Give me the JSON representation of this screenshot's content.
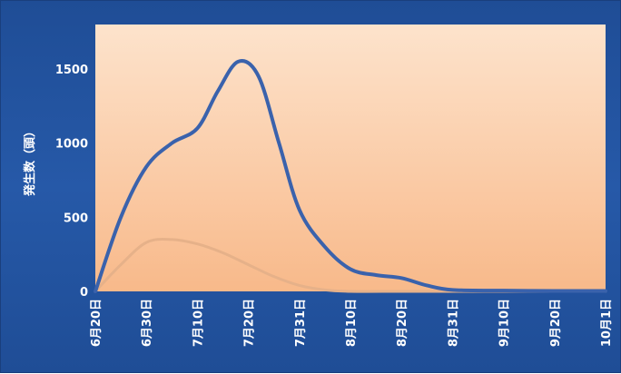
{
  "chart_data": {
    "type": "line",
    "title": "",
    "xlabel": "",
    "ylabel": "発生数（頭）",
    "ylim": [
      0,
      1800
    ],
    "yticks": [
      0,
      500,
      1000,
      1500
    ],
    "grid": false,
    "categories": [
      "6月20日",
      "6月30日",
      "7月10日",
      "7月20日",
      "7月31日",
      "8月10日",
      "8月20日",
      "8月31日",
      "9月10日",
      "9月20日",
      "10月1日"
    ],
    "series": [
      {
        "color": "#3a62ac",
        "x": [
          0,
          0.5,
          1.0,
          1.5,
          2.0,
          2.4,
          2.8,
          3.2,
          3.6,
          4.0,
          4.5,
          5.0,
          5.5,
          6.0,
          6.5,
          7.0,
          8.0,
          9.0,
          10.0
        ],
        "values": [
          0,
          500,
          840,
          1000,
          1100,
          1350,
          1550,
          1450,
          1000,
          550,
          300,
          150,
          110,
          90,
          40,
          10,
          5,
          3,
          3
        ]
      },
      {
        "color": "#e6b189",
        "x": [
          0,
          0.5,
          1.0,
          1.5,
          2.0,
          2.5,
          3.0,
          3.5,
          4.0,
          4.5,
          5.0,
          6.0,
          7.0,
          8.0,
          9.0,
          10.0
        ],
        "values": [
          0,
          180,
          330,
          350,
          320,
          260,
          180,
          100,
          40,
          10,
          0,
          0,
          0,
          0,
          0,
          0
        ]
      }
    ]
  }
}
